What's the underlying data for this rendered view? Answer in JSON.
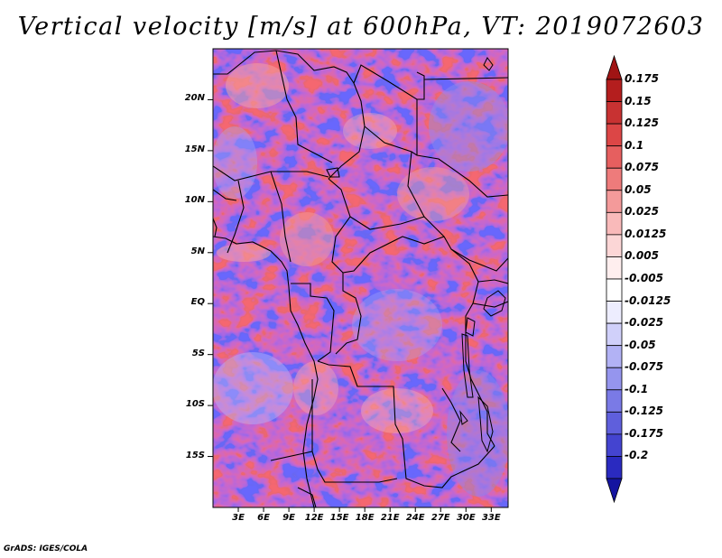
{
  "title": "Vertical velocity [m/s] at 600hPa, VT: 2019072603",
  "credit": "GrADS: IGES/COLA",
  "map": {
    "lat_range": [
      -20,
      25
    ],
    "lon_range": [
      0,
      35
    ],
    "lat_ticks": [
      {
        "value": 20,
        "label": "20N"
      },
      {
        "value": 15,
        "label": "15N"
      },
      {
        "value": 10,
        "label": "10N"
      },
      {
        "value": 5,
        "label": "5N"
      },
      {
        "value": 0,
        "label": "EQ"
      },
      {
        "value": -5,
        "label": "5S"
      },
      {
        "value": -10,
        "label": "10S"
      },
      {
        "value": -15,
        "label": "15S"
      }
    ],
    "lon_ticks": [
      {
        "value": 3,
        "label": "3E"
      },
      {
        "value": 6,
        "label": "6E"
      },
      {
        "value": 9,
        "label": "9E"
      },
      {
        "value": 12,
        "label": "12E"
      },
      {
        "value": 15,
        "label": "15E"
      },
      {
        "value": 18,
        "label": "18E"
      },
      {
        "value": 21,
        "label": "21E"
      },
      {
        "value": 24,
        "label": "24E"
      },
      {
        "value": 27,
        "label": "27E"
      },
      {
        "value": 30,
        "label": "30E"
      },
      {
        "value": 33,
        "label": "33E"
      }
    ]
  },
  "colorbar": {
    "entries": [
      {
        "label": "0.175",
        "color": "#b41e1e"
      },
      {
        "label": "0.15",
        "color": "#c83232"
      },
      {
        "label": "0.125",
        "color": "#dc4646"
      },
      {
        "label": "0.1",
        "color": "#e65f5f"
      },
      {
        "label": "0.075",
        "color": "#ee7b7b"
      },
      {
        "label": "0.05",
        "color": "#f49a9a"
      },
      {
        "label": "0.025",
        "color": "#f9baba"
      },
      {
        "label": "0.0125",
        "color": "#fcd6d6"
      },
      {
        "label": "0.005",
        "color": "#feeeee"
      },
      {
        "label": "-0.005",
        "color": "#ffffff"
      },
      {
        "label": "-0.0125",
        "color": "#ededfe"
      },
      {
        "label": "-0.025",
        "color": "#d0d0fa"
      },
      {
        "label": "-0.05",
        "color": "#b2b2f5"
      },
      {
        "label": "-0.075",
        "color": "#9595ee"
      },
      {
        "label": "-0.1",
        "color": "#7a7ae6"
      },
      {
        "label": "-0.125",
        "color": "#5f5fdc"
      },
      {
        "label": "-0.175",
        "color": "#4444d0"
      },
      {
        "label": "-0.2",
        "color": "#2a2ac0"
      }
    ],
    "top_color": "#a01414",
    "bottom_color": "#1414a0"
  }
}
